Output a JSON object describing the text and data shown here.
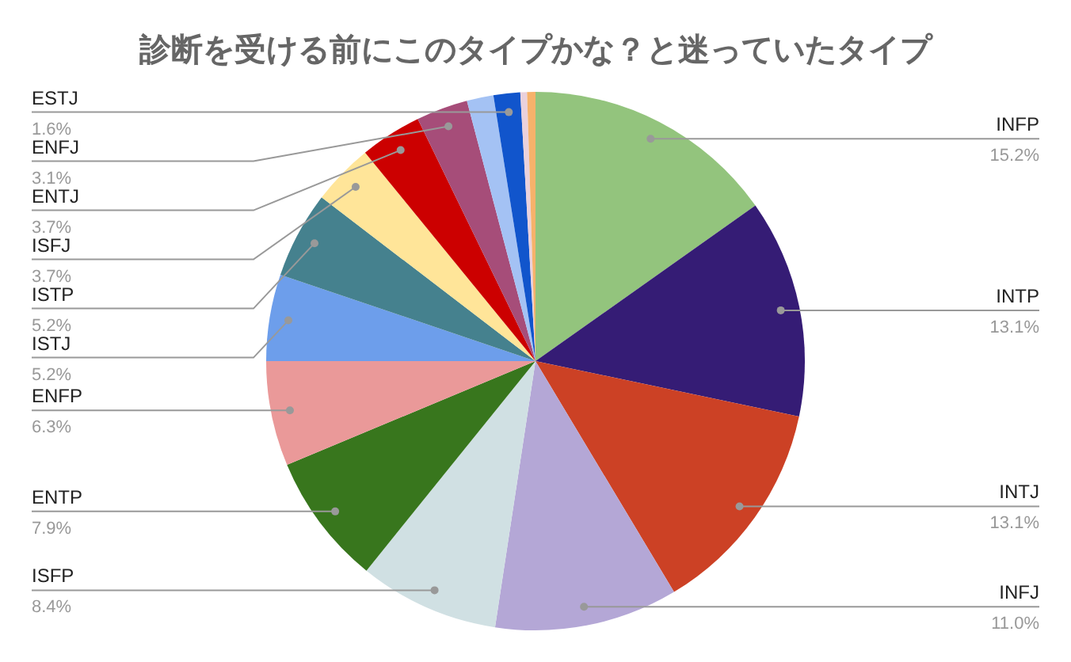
{
  "chart_data": {
    "type": "pie",
    "title": "診断を受ける前にこのタイプかな？と迷っていたタイプ",
    "categories": [
      "INFP",
      "INTP",
      "INTJ",
      "INFJ",
      "ISFP",
      "ENTP",
      "ENFP",
      "ISTJ",
      "ISTP",
      "ISFJ",
      "ENTJ",
      "ENFJ",
      null,
      "ESTJ",
      null,
      null
    ],
    "values": [
      15.2,
      13.1,
      13.1,
      11.0,
      8.4,
      7.9,
      6.3,
      5.2,
      5.2,
      3.7,
      3.7,
      3.1,
      1.6,
      1.6,
      0.4,
      0.5
    ],
    "value_labels": [
      "15.2%",
      "13.1%",
      "13.1%",
      "11.0%",
      "8.4%",
      "7.9%",
      "6.3%",
      "5.2%",
      "5.2%",
      "3.7%",
      "3.7%",
      "3.1%",
      null,
      "1.6%",
      null,
      null
    ],
    "colors": [
      "#93c47d",
      "#351c75",
      "#cc4125",
      "#b4a7d6",
      "#d0e0e3",
      "#38761d",
      "#ea9999",
      "#6d9eeb",
      "#45818e",
      "#ffe599",
      "#cc0000",
      "#a64d79",
      "#a4c2f4",
      "#1155cc",
      "#ead1dc",
      "#f6b26b"
    ],
    "legend": false
  }
}
